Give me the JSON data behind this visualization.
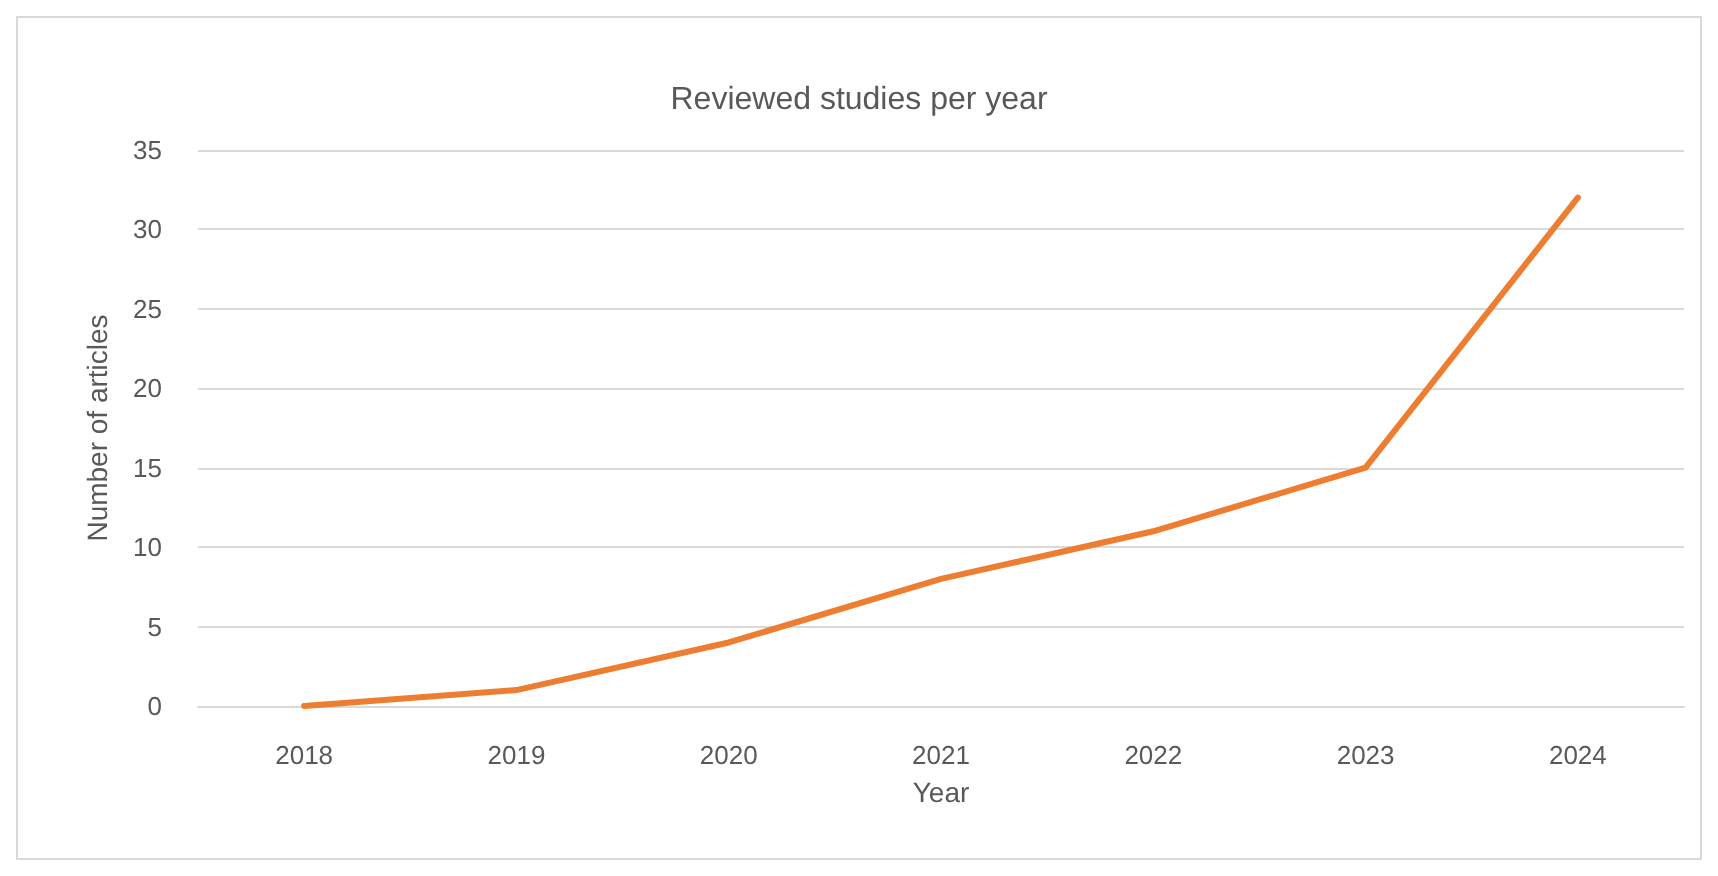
{
  "chart_data": {
    "type": "line",
    "title": "Reviewed studies per year",
    "xlabel": "Year",
    "ylabel": "Number of articles",
    "categories": [
      "2018",
      "2019",
      "2020",
      "2021",
      "2022",
      "2023",
      "2024"
    ],
    "series": [
      {
        "color": "#ed7d31",
        "values": [
          0,
          1,
          4,
          8,
          11,
          15,
          32
        ]
      }
    ],
    "ylim": [
      0,
      35
    ],
    "yticks": [
      0,
      5,
      10,
      15,
      20,
      25,
      30,
      35
    ],
    "grid": "y",
    "marker": "none",
    "line_style": "solid"
  }
}
